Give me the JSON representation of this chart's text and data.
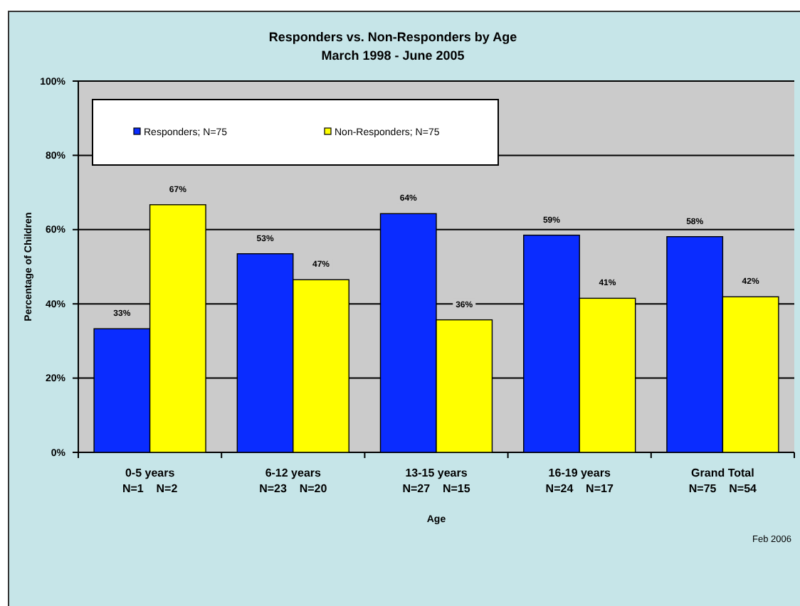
{
  "chart_data": {
    "type": "bar",
    "title": "Responders vs. Non-Responders by Age",
    "subtitle": "March 1998 - June 2005",
    "xlabel": "Age",
    "ylabel": "Percentage of Children",
    "categories": [
      "0-5 years\nN=1    N=2",
      "6-12 years\nN=23    N=20",
      "13-15 years\nN=27    N=15",
      "16-19 years\nN=24    N=17",
      "Grand Total\nN=75    N=54"
    ],
    "series": [
      {
        "name": "Responders; N=75",
        "color": "#0a2cff",
        "values": [
          33.3,
          53.5,
          64.3,
          58.5,
          58.1
        ],
        "value_labels": [
          "33%",
          "53%",
          "64%",
          "59%",
          "58%"
        ]
      },
      {
        "name": "Non-Responders; N=75",
        "color": "#ffff00",
        "values": [
          66.7,
          46.5,
          35.7,
          41.5,
          41.9
        ],
        "value_labels": [
          "67%",
          "47%",
          "36%",
          "41%",
          "42%"
        ]
      }
    ],
    "ylim": [
      0,
      100
    ],
    "yticks": [
      {
        "value": 0,
        "label": "0%"
      },
      {
        "value": 20,
        "label": "20%"
      },
      {
        "value": 40,
        "label": "40%"
      },
      {
        "value": 60,
        "label": "60%"
      },
      {
        "value": 80,
        "label": "80%"
      },
      {
        "value": 100,
        "label": "100%"
      }
    ],
    "grid": "y",
    "legend": "top left",
    "annotations": [
      "Feb 2006"
    ]
  }
}
